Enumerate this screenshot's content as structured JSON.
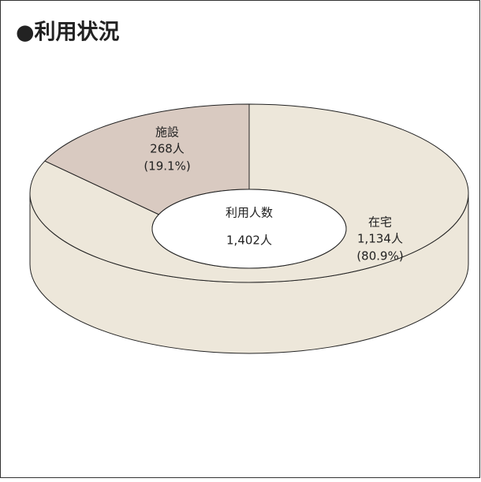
{
  "chart_data": {
    "type": "pie",
    "title": "●利用状況",
    "categories": [
      "在宅",
      "施設"
    ],
    "values": [
      1134,
      268
    ],
    "value_labels": [
      "1,134人",
      "268人"
    ],
    "percents": [
      80.9,
      19.1
    ],
    "percent_labels": [
      "(80.9%)",
      "(19.1%)"
    ],
    "colors": [
      "#ede7da",
      "#d9cac1"
    ],
    "center_text": [
      "利用人数",
      "1,402人"
    ]
  }
}
